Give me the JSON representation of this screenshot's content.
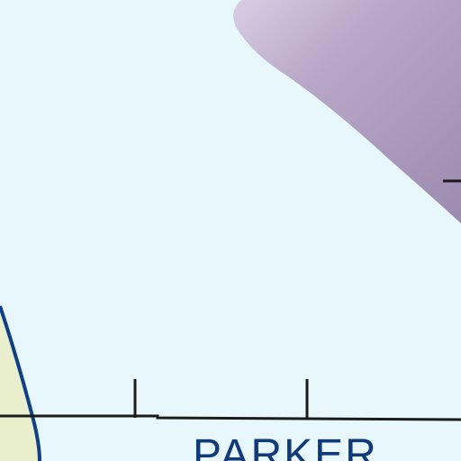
{
  "map": {
    "place_label": "PARKER",
    "colors": {
      "background": "#e8f7fb",
      "land": "#e9efcc",
      "shoreline": "#0f3f86",
      "road": "#1b1b1b",
      "label": "#103a7a",
      "water_feature": "#b3a3c3"
    }
  }
}
